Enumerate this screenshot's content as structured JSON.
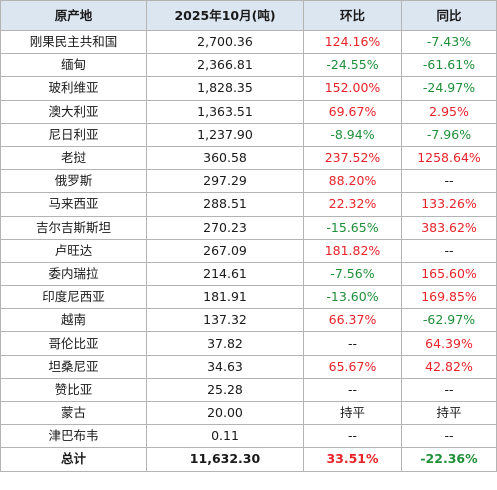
{
  "headers": [
    "原产地",
    "2025年10月(吨)",
    "环比",
    "同比"
  ],
  "rows": [
    {
      "origin": "刚果民主共和国",
      "value": "2,700.36",
      "mom": "124.16%",
      "mom_color": "red",
      "yoy": "-7.43%",
      "yoy_color": "green"
    },
    {
      "origin": "缅甸",
      "value": "2,366.81",
      "mom": "-24.55%",
      "mom_color": "green",
      "yoy": "-61.61%",
      "yoy_color": "green"
    },
    {
      "origin": "玻利维亚",
      "value": "1,828.35",
      "mom": "152.00%",
      "mom_color": "red",
      "yoy": "-24.97%",
      "yoy_color": "green"
    },
    {
      "origin": "澳大利亚",
      "value": "1,363.51",
      "mom": "69.67%",
      "mom_color": "red",
      "yoy": "2.95%",
      "yoy_color": "red"
    },
    {
      "origin": "尼日利亚",
      "value": "1,237.90",
      "mom": "-8.94%",
      "mom_color": "green",
      "yoy": "-7.96%",
      "yoy_color": "green"
    },
    {
      "origin": "老挝",
      "value": "360.58",
      "mom": "237.52%",
      "mom_color": "red",
      "yoy": "1258.64%",
      "yoy_color": "red"
    },
    {
      "origin": "俄罗斯",
      "value": "297.29",
      "mom": "88.20%",
      "mom_color": "red",
      "yoy": "--",
      "yoy_color": "plain"
    },
    {
      "origin": "马来西亚",
      "value": "288.51",
      "mom": "22.32%",
      "mom_color": "red",
      "yoy": "133.26%",
      "yoy_color": "red"
    },
    {
      "origin": "吉尔吉斯斯坦",
      "value": "270.23",
      "mom": "-15.65%",
      "mom_color": "green",
      "yoy": "383.62%",
      "yoy_color": "red"
    },
    {
      "origin": "卢旺达",
      "value": "267.09",
      "mom": "181.82%",
      "mom_color": "red",
      "yoy": "--",
      "yoy_color": "plain"
    },
    {
      "origin": "委内瑞拉",
      "value": "214.61",
      "mom": "-7.56%",
      "mom_color": "green",
      "yoy": "165.60%",
      "yoy_color": "red"
    },
    {
      "origin": "印度尼西亚",
      "value": "181.91",
      "mom": "-13.60%",
      "mom_color": "green",
      "yoy": "169.85%",
      "yoy_color": "red"
    },
    {
      "origin": "越南",
      "value": "137.32",
      "mom": "66.37%",
      "mom_color": "red",
      "yoy": "-62.97%",
      "yoy_color": "green"
    },
    {
      "origin": "哥伦比亚",
      "value": "37.82",
      "mom": "--",
      "mom_color": "plain",
      "yoy": "64.39%",
      "yoy_color": "red"
    },
    {
      "origin": "坦桑尼亚",
      "value": "34.63",
      "mom": "65.67%",
      "mom_color": "red",
      "yoy": "42.82%",
      "yoy_color": "red"
    },
    {
      "origin": "赞比亚",
      "value": "25.28",
      "mom": "--",
      "mom_color": "plain",
      "yoy": "--",
      "yoy_color": "plain"
    },
    {
      "origin": "蒙古",
      "value": "20.00",
      "mom": "持平",
      "mom_color": "plain",
      "yoy": "持平",
      "yoy_color": "plain"
    },
    {
      "origin": "津巴布韦",
      "value": "0.11",
      "mom": "--",
      "mom_color": "plain",
      "yoy": "--",
      "yoy_color": "plain"
    }
  ],
  "total": {
    "origin": "总计",
    "value": "11,632.30",
    "mom": "33.51%",
    "mom_color": "red",
    "yoy": "-22.36%",
    "yoy_color": "green"
  },
  "colors": {
    "header_bg": "#dce6f1",
    "positive": "#e8232a",
    "negative": "#1f8f3a",
    "border": "#b4b4b4"
  }
}
